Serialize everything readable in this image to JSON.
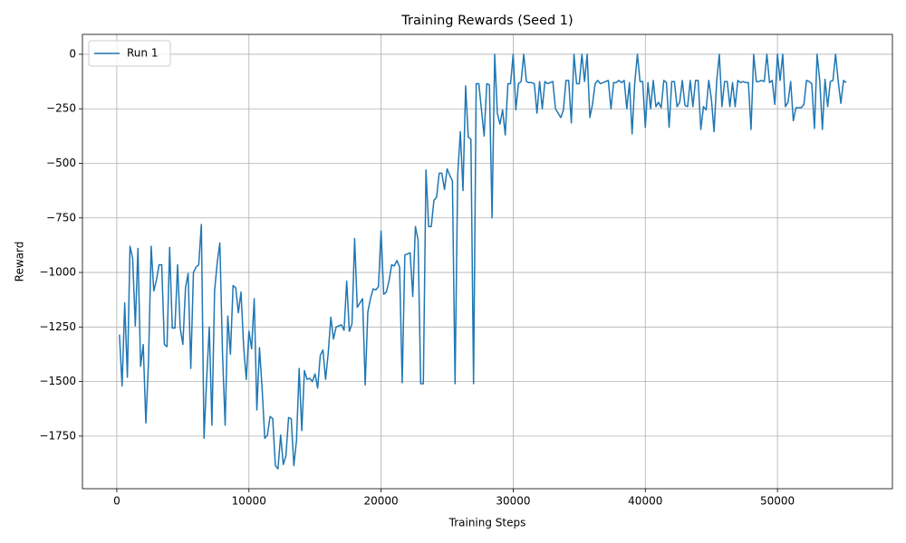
{
  "chart_data": {
    "type": "line",
    "title": "Training Rewards (Seed 1)",
    "x_label": "Training Steps",
    "y_label": "Reward",
    "x": [
      200,
      400,
      600,
      800,
      1000,
      1200,
      1400,
      1600,
      1800,
      2000,
      2200,
      2400,
      2600,
      2800,
      3000,
      3200,
      3400,
      3600,
      3800,
      4000,
      4200,
      4400,
      4600,
      4800,
      5000,
      5200,
      5400,
      5600,
      5800,
      6000,
      6200,
      6400,
      6600,
      6800,
      7000,
      7200,
      7400,
      7600,
      7800,
      8000,
      8200,
      8400,
      8600,
      8800,
      9000,
      9200,
      9400,
      9600,
      9800,
      10000,
      10200,
      10400,
      10600,
      10800,
      11000,
      11200,
      11400,
      11600,
      11800,
      12000,
      12200,
      12400,
      12600,
      12800,
      13000,
      13200,
      13400,
      13600,
      13800,
      14000,
      14200,
      14400,
      14600,
      14800,
      15000,
      15200,
      15400,
      15600,
      15800,
      16000,
      16200,
      16400,
      16600,
      16800,
      17000,
      17200,
      17400,
      17600,
      17800,
      18000,
      18200,
      18400,
      18600,
      18800,
      19000,
      19200,
      19400,
      19600,
      19800,
      20000,
      20200,
      20400,
      20600,
      20800,
      21000,
      21200,
      21400,
      21600,
      21800,
      22000,
      22200,
      22400,
      22600,
      22800,
      23000,
      23200,
      23400,
      23600,
      23800,
      24000,
      24200,
      24400,
      24600,
      24800,
      25000,
      25200,
      25400,
      25600,
      25800,
      26000,
      26200,
      26400,
      26600,
      26800,
      27000,
      27200,
      27400,
      27600,
      27800,
      28000,
      28200,
      28400,
      28600,
      28800,
      29000,
      29200,
      29400,
      29600,
      29800,
      30000,
      30200,
      30400,
      30600,
      30800,
      31000,
      31200,
      31400,
      31600,
      31800,
      32000,
      32200,
      32400,
      32600,
      32800,
      33000,
      33200,
      33400,
      33600,
      33800,
      34000,
      34200,
      34400,
      34600,
      34800,
      35000,
      35200,
      35400,
      35600,
      35800,
      36000,
      36200,
      36400,
      36600,
      36800,
      37000,
      37200,
      37400,
      37600,
      37800,
      38000,
      38200,
      38400,
      38600,
      38800,
      39000,
      39200,
      39400,
      39600,
      39800,
      40000,
      40200,
      40400,
      40600,
      40800,
      41000,
      41200,
      41400,
      41600,
      41800,
      42000,
      42200,
      42400,
      42600,
      42800,
      43000,
      43200,
      43400,
      43600,
      43800,
      44000,
      44200,
      44400,
      44600,
      44800,
      45000,
      45200,
      45400,
      45600,
      45800,
      46000,
      46200,
      46400,
      46600,
      46800,
      47000,
      47200,
      47400,
      47600,
      47800,
      48000,
      48200,
      48400,
      48600,
      48800,
      49000,
      49200,
      49400,
      49600,
      49800,
      50000,
      50200,
      50400,
      50600,
      50800,
      51000,
      51200,
      51400,
      51600,
      51800,
      52000,
      52200,
      52400,
      52600,
      52800,
      53000,
      53200,
      53400,
      53600,
      53800,
      54000,
      54200,
      54400,
      54600,
      54800,
      55000,
      55200
    ],
    "series": [
      {
        "name": "Run 1",
        "color": "#1f77b4",
        "values": [
          -1285,
          -1520,
          -1140,
          -1480,
          -880,
          -935,
          -1245,
          -890,
          -1430,
          -1330,
          -1690,
          -1410,
          -880,
          -1085,
          -1035,
          -965,
          -965,
          -1330,
          -1340,
          -885,
          -1255,
          -1255,
          -965,
          -1255,
          -1330,
          -1070,
          -1005,
          -1440,
          -1000,
          -975,
          -965,
          -780,
          -1760,
          -1490,
          -1250,
          -1700,
          -1085,
          -955,
          -865,
          -1370,
          -1700,
          -1200,
          -1375,
          -1060,
          -1070,
          -1185,
          -1090,
          -1340,
          -1490,
          -1270,
          -1350,
          -1120,
          -1630,
          -1345,
          -1535,
          -1760,
          -1745,
          -1660,
          -1670,
          -1885,
          -1900,
          -1745,
          -1880,
          -1840,
          -1665,
          -1670,
          -1885,
          -1770,
          -1440,
          -1725,
          -1450,
          -1490,
          -1485,
          -1500,
          -1465,
          -1530,
          -1380,
          -1355,
          -1490,
          -1370,
          -1205,
          -1305,
          -1250,
          -1245,
          -1240,
          -1265,
          -1040,
          -1270,
          -1235,
          -845,
          -1160,
          -1140,
          -1120,
          -1515,
          -1180,
          -1120,
          -1075,
          -1080,
          -1065,
          -810,
          -1100,
          -1090,
          -1040,
          -965,
          -970,
          -945,
          -975,
          -1505,
          -920,
          -915,
          -910,
          -1110,
          -790,
          -850,
          -1510,
          -1510,
          -530,
          -790,
          -790,
          -670,
          -655,
          -545,
          -545,
          -620,
          -525,
          -555,
          -580,
          -1510,
          -555,
          -355,
          -625,
          -145,
          -380,
          -390,
          -1510,
          -135,
          -135,
          -255,
          -375,
          -135,
          -140,
          -750,
          0,
          -270,
          -320,
          -255,
          -370,
          -135,
          -135,
          0,
          -255,
          -135,
          -125,
          0,
          -125,
          -130,
          -130,
          -135,
          -270,
          -125,
          -250,
          -125,
          -135,
          -130,
          -125,
          -250,
          -270,
          -290,
          -255,
          -120,
          -120,
          -315,
          0,
          -135,
          -135,
          0,
          -125,
          0,
          -290,
          -230,
          -135,
          -120,
          -135,
          -130,
          -125,
          -120,
          -250,
          -130,
          -130,
          -120,
          -130,
          -120,
          -250,
          -130,
          -365,
          -130,
          0,
          -125,
          -125,
          -335,
          -130,
          -250,
          -120,
          -240,
          -220,
          -245,
          -120,
          -130,
          -335,
          -125,
          -125,
          -240,
          -220,
          -120,
          -235,
          -240,
          -120,
          -240,
          -120,
          -120,
          -345,
          -240,
          -255,
          -120,
          -205,
          -355,
          -125,
          0,
          -240,
          -125,
          -125,
          -240,
          -130,
          -240,
          -120,
          -130,
          -125,
          -130,
          -130,
          -345,
          0,
          -125,
          -125,
          -120,
          -125,
          0,
          -130,
          -120,
          -230,
          0,
          -120,
          0,
          -240,
          -220,
          -125,
          -305,
          -245,
          -245,
          -245,
          -230,
          -120,
          -125,
          -135,
          -340,
          0,
          -120,
          -345,
          -115,
          -240,
          -125,
          -120,
          0,
          -125,
          -225,
          -120,
          -130
        ]
      }
    ],
    "xlim": [
      -2600,
      58700
    ],
    "ylim": [
      -1991,
      91
    ],
    "xticks": [
      0,
      10000,
      20000,
      30000,
      40000,
      50000
    ],
    "yticks": [
      {
        "value": -1750,
        "label": "−1750"
      },
      {
        "value": -1500,
        "label": "−1500"
      },
      {
        "value": -1250,
        "label": "−1250"
      },
      {
        "value": -1000,
        "label": "−1000"
      },
      {
        "value": -750,
        "label": "−750"
      },
      {
        "value": -500,
        "label": "−500"
      },
      {
        "value": -250,
        "label": "−250"
      },
      0
    ],
    "grid": true,
    "legend": "upper left"
  }
}
